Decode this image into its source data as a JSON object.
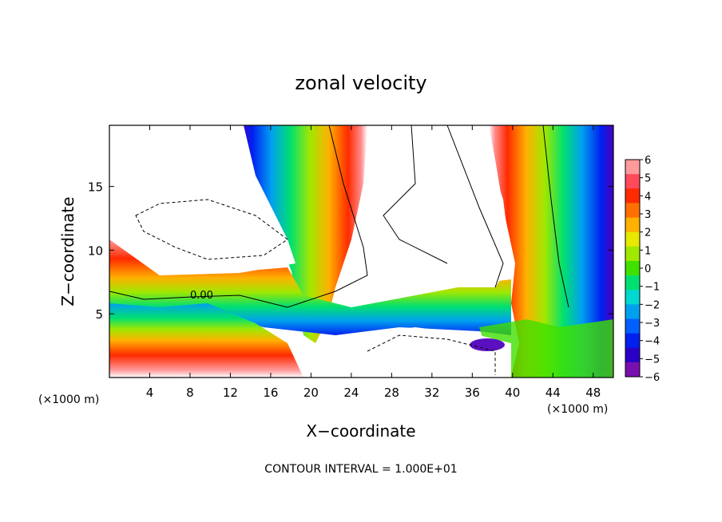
{
  "chart_data": {
    "type": "heatmap",
    "title": "zonal velocity",
    "xlabel": "X−coordinate",
    "ylabel": "Z−coordinate",
    "x_unit_left": "(×1000 m)",
    "x_unit_right": "(×1000 m)",
    "footer": "CONTOUR INTERVAL = 1.000E+01",
    "contour_label": "0.00",
    "xlim": [
      0,
      50
    ],
    "ylim": [
      0,
      19.8
    ],
    "x_ticks": [
      4,
      8,
      12,
      16,
      20,
      24,
      28,
      32,
      36,
      40,
      44,
      48
    ],
    "y_ticks": [
      5,
      10,
      15
    ],
    "colorbar": {
      "min": -6,
      "max": 6,
      "tick_labels": [
        "6",
        "5",
        "4",
        "3",
        "2",
        "1",
        "0",
        "−1",
        "−2",
        "−3",
        "−4",
        "−5",
        "−6"
      ]
    },
    "colors": {
      "levels": [
        "#7a0fb0",
        "#2a00c8",
        "#0020f0",
        "#0060ff",
        "#00a0f0",
        "#00d8d0",
        "#00e070",
        "#40e000",
        "#a0e800",
        "#e8e800",
        "#ffb000",
        "#ff7000",
        "#ff2a00",
        "#ff4a5a",
        "#ff9a9a"
      ],
      "frame": "#000000"
    }
  }
}
